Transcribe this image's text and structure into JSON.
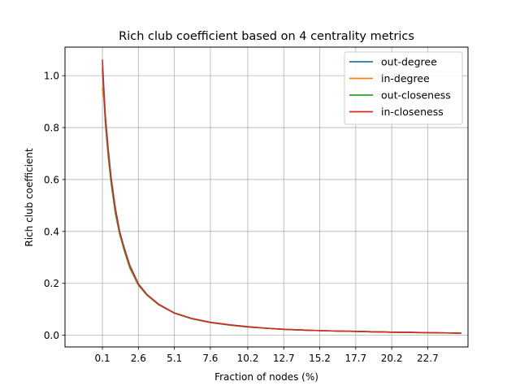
{
  "chart_data": {
    "type": "line",
    "title": "Rich club coefficient based on 4 centrality metrics",
    "xlabel": "Fraction of nodes (%)",
    "ylabel": "Rich club coefficient",
    "xlim": [
      -2.5,
      25.5
    ],
    "ylim": [
      -0.045,
      1.11
    ],
    "xticks": [
      "0.1",
      "2.6",
      "5.1",
      "7.6",
      "10.2",
      "12.7",
      "15.2",
      "17.7",
      "20.2",
      "22.7"
    ],
    "xtick_values": [
      0.1,
      2.6,
      5.1,
      7.6,
      10.2,
      12.7,
      15.2,
      17.7,
      20.2,
      22.7
    ],
    "yticks": [
      "0.0",
      "0.2",
      "0.4",
      "0.6",
      "0.8",
      "1.0"
    ],
    "ytick_values": [
      0.0,
      0.2,
      0.4,
      0.6,
      0.8,
      1.0
    ],
    "grid": true,
    "legend_position": "top-right",
    "x": [
      0.1,
      0.2,
      0.3,
      0.5,
      0.7,
      1.0,
      1.3,
      1.6,
      2.0,
      2.6,
      3.2,
      4.0,
      5.1,
      6.3,
      7.6,
      9.0,
      10.2,
      11.5,
      12.7,
      14.0,
      15.2,
      16.5,
      17.7,
      19.0,
      20.2,
      21.5,
      22.7,
      24.0,
      25.0
    ],
    "series": [
      {
        "name": "out-degree",
        "color": "#1f77b4",
        "values": [
          1.02,
          0.92,
          0.82,
          0.69,
          0.59,
          0.47,
          0.39,
          0.33,
          0.26,
          0.195,
          0.155,
          0.118,
          0.085,
          0.064,
          0.049,
          0.039,
          0.032,
          0.027,
          0.023,
          0.02,
          0.018,
          0.016,
          0.015,
          0.013,
          0.012,
          0.011,
          0.01,
          0.009,
          0.008
        ]
      },
      {
        "name": "in-degree",
        "color": "#ff7f0e",
        "values": [
          0.95,
          0.91,
          0.84,
          0.7,
          0.6,
          0.48,
          0.395,
          0.335,
          0.265,
          0.197,
          0.156,
          0.119,
          0.086,
          0.065,
          0.05,
          0.039,
          0.033,
          0.027,
          0.023,
          0.02,
          0.018,
          0.016,
          0.015,
          0.013,
          0.012,
          0.011,
          0.01,
          0.009,
          0.008
        ]
      },
      {
        "name": "out-closeness",
        "color": "#2ca02c",
        "values": [
          1.03,
          0.93,
          0.83,
          0.7,
          0.59,
          0.47,
          0.39,
          0.33,
          0.26,
          0.193,
          0.154,
          0.118,
          0.085,
          0.064,
          0.049,
          0.039,
          0.032,
          0.027,
          0.023,
          0.02,
          0.018,
          0.016,
          0.015,
          0.013,
          0.012,
          0.011,
          0.01,
          0.009,
          0.008
        ]
      },
      {
        "name": "in-closeness",
        "color": "#d62728",
        "values": [
          1.06,
          0.95,
          0.85,
          0.72,
          0.61,
          0.49,
          0.4,
          0.34,
          0.27,
          0.198,
          0.157,
          0.12,
          0.086,
          0.065,
          0.05,
          0.04,
          0.033,
          0.027,
          0.023,
          0.02,
          0.018,
          0.016,
          0.015,
          0.013,
          0.012,
          0.011,
          0.01,
          0.009,
          0.008
        ]
      }
    ]
  }
}
